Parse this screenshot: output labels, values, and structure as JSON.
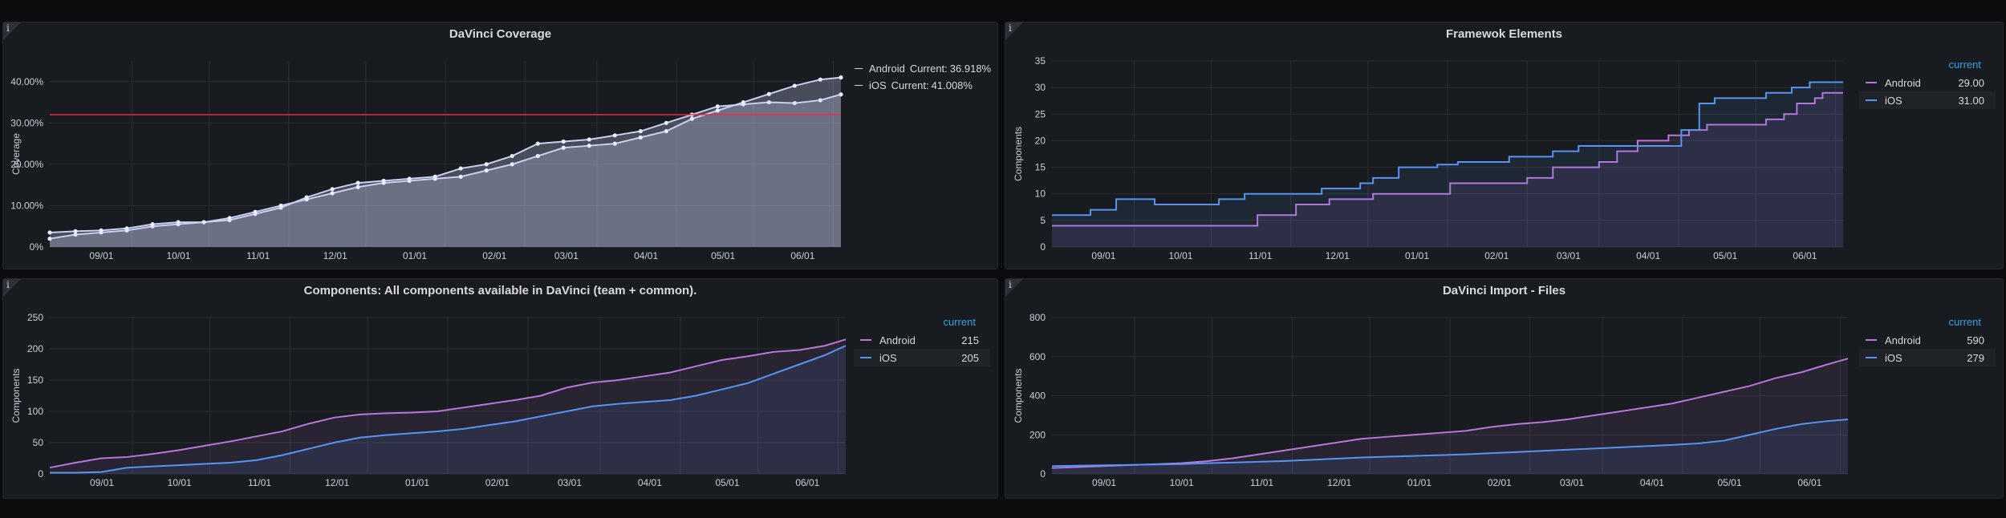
{
  "panels": {
    "p1": {
      "title": "DaVinci Coverage",
      "legend": [
        {
          "name": "Android",
          "prefix": "Current:",
          "value": "36.918%"
        },
        {
          "name": "iOS",
          "prefix": "Current:",
          "value": "41.008%"
        }
      ]
    },
    "p2": {
      "title": "Framewok Elements",
      "legend_header": "current",
      "legend": [
        {
          "name": "Android",
          "value": "29.00"
        },
        {
          "name": "iOS",
          "value": "31.00"
        }
      ]
    },
    "p3": {
      "title": "Components: All components available in DaVinci (team + common).",
      "legend_header": "current",
      "legend": [
        {
          "name": "Android",
          "value": "215"
        },
        {
          "name": "iOS",
          "value": "205"
        }
      ]
    },
    "p4": {
      "title": "DaVinci Import - Files",
      "legend_header": "current",
      "legend": [
        {
          "name": "Android",
          "value": "590"
        },
        {
          "name": "iOS",
          "value": "279"
        }
      ]
    }
  },
  "colors": {
    "android": "#b877d9",
    "ios": "#5794f2",
    "coverage": "#c7d0f0",
    "threshold": "#e02f44"
  },
  "chart_data": [
    {
      "id": "p1",
      "type": "line",
      "title": "DaVinci Coverage",
      "xlabel": "",
      "ylabel": "Coverage",
      "x_ticks": [
        "09/01",
        "10/01",
        "11/01",
        "12/01",
        "01/01",
        "02/01",
        "03/01",
        "04/01",
        "05/01",
        "06/01"
      ],
      "y_ticks": [
        "0%",
        "10.00%",
        "20.00%",
        "30.00%",
        "40.00%"
      ],
      "ylim": [
        0,
        45
      ],
      "xlim": [
        0,
        308
      ],
      "x_tick_values": [
        32,
        62,
        93,
        123,
        154,
        185,
        213,
        244,
        274,
        305
      ],
      "threshold": 32,
      "series": [
        {
          "name": "Android",
          "x": [
            0,
            10,
            20,
            30,
            40,
            50,
            60,
            70,
            80,
            90,
            100,
            110,
            120,
            130,
            140,
            150,
            160,
            170,
            180,
            190,
            200,
            210,
            220,
            230,
            240,
            250,
            260,
            270,
            280,
            290,
            300,
            308
          ],
          "y": [
            2,
            3,
            3.5,
            4,
            5,
            5.5,
            6,
            6.5,
            8,
            9.5,
            12,
            14,
            15.5,
            16,
            16.5,
            17,
            19,
            20,
            22,
            25,
            25.5,
            26,
            27,
            28,
            30,
            32,
            34,
            34.5,
            35,
            34.8,
            35.5,
            36.9
          ]
        },
        {
          "name": "iOS",
          "x": [
            0,
            10,
            20,
            30,
            40,
            50,
            60,
            70,
            80,
            90,
            100,
            110,
            120,
            130,
            140,
            150,
            160,
            170,
            180,
            190,
            200,
            210,
            220,
            230,
            240,
            250,
            260,
            270,
            280,
            290,
            300,
            308
          ],
          "y": [
            3.5,
            3.8,
            4,
            4.5,
            5.5,
            6,
            6,
            7,
            8.5,
            10,
            11.5,
            13,
            14.5,
            15.5,
            16,
            16.5,
            17,
            18.5,
            20,
            22,
            24,
            24.5,
            25,
            26.5,
            28,
            31,
            33,
            35,
            37,
            39,
            40.5,
            41
          ]
        }
      ]
    },
    {
      "id": "p2",
      "type": "line",
      "title": "Framewok Elements",
      "xlabel": "",
      "ylabel": "Components",
      "x_ticks": [
        "09/01",
        "10/01",
        "11/01",
        "12/01",
        "01/01",
        "02/01",
        "03/01",
        "04/01",
        "05/01",
        "06/01"
      ],
      "y_ticks": [
        "0",
        "5",
        "10",
        "15",
        "20",
        "25",
        "30",
        "35"
      ],
      "ylim": [
        0,
        35
      ],
      "xlim": [
        0,
        308
      ],
      "x_tick_values": [
        32,
        62,
        93,
        123,
        154,
        185,
        213,
        244,
        274,
        305
      ],
      "series": [
        {
          "name": "Android",
          "x": [
            0,
            60,
            70,
            80,
            95,
            108,
            120,
            125,
            145,
            155,
            160,
            168,
            185,
            195,
            205,
            213,
            220,
            228,
            240,
            248,
            255,
            270,
            278,
            285,
            290,
            297,
            300,
            308
          ],
          "y": [
            4,
            4,
            4,
            6,
            8,
            9,
            9,
            10,
            10,
            12,
            12,
            12,
            13,
            15,
            15,
            16,
            18,
            20,
            21,
            22,
            23,
            23,
            24,
            25,
            27,
            28,
            29,
            29
          ]
        },
        {
          "name": "iOS",
          "x": [
            0,
            15,
            25,
            40,
            55,
            65,
            75,
            85,
            95,
            105,
            110,
            120,
            125,
            135,
            150,
            158,
            168,
            178,
            185,
            195,
            205,
            212,
            220,
            228,
            240,
            245,
            252,
            258,
            272,
            278,
            288,
            295,
            300,
            308
          ],
          "y": [
            6,
            7,
            9,
            8,
            8,
            9,
            10,
            10,
            10,
            11,
            11,
            12,
            13,
            15,
            15.5,
            16,
            16,
            17,
            17,
            18,
            19,
            19,
            19,
            19,
            19,
            22,
            27,
            28,
            28,
            29,
            30,
            31,
            31,
            31
          ]
        }
      ]
    },
    {
      "id": "p3",
      "type": "line",
      "title": "Components: All components available in DaVinci (team + common).",
      "xlabel": "",
      "ylabel": "Components",
      "x_ticks": [
        "09/01",
        "10/01",
        "11/01",
        "12/01",
        "01/01",
        "02/01",
        "03/01",
        "04/01",
        "05/01",
        "06/01"
      ],
      "y_ticks": [
        "0",
        "50",
        "100",
        "150",
        "200",
        "250"
      ],
      "ylim": [
        0,
        250
      ],
      "xlim": [
        0,
        308
      ],
      "x_tick_values": [
        32,
        62,
        93,
        123,
        154,
        185,
        213,
        244,
        274,
        305
      ],
      "series": [
        {
          "name": "Android",
          "x": [
            0,
            10,
            20,
            30,
            40,
            50,
            60,
            70,
            80,
            90,
            100,
            110,
            120,
            130,
            140,
            150,
            160,
            170,
            180,
            190,
            200,
            210,
            220,
            230,
            240,
            250,
            260,
            270,
            280,
            290,
            300,
            308
          ],
          "y": [
            10,
            18,
            25,
            27,
            32,
            38,
            45,
            52,
            60,
            68,
            80,
            90,
            95,
            97,
            98,
            100,
            106,
            112,
            118,
            125,
            138,
            146,
            150,
            156,
            162,
            172,
            182,
            188,
            195,
            198,
            205,
            215
          ]
        },
        {
          "name": "iOS",
          "x": [
            0,
            10,
            20,
            30,
            40,
            50,
            60,
            70,
            80,
            90,
            100,
            110,
            120,
            130,
            140,
            150,
            160,
            170,
            180,
            190,
            200,
            210,
            220,
            230,
            240,
            250,
            260,
            270,
            280,
            290,
            300,
            308
          ],
          "y": [
            2,
            2,
            3,
            10,
            12,
            14,
            16,
            18,
            22,
            30,
            40,
            50,
            58,
            62,
            65,
            68,
            72,
            78,
            84,
            92,
            100,
            108,
            112,
            115,
            118,
            125,
            135,
            145,
            160,
            175,
            190,
            205
          ]
        }
      ]
    },
    {
      "id": "p4",
      "type": "line",
      "title": "DaVinci Import - Files",
      "xlabel": "",
      "ylabel": "Components",
      "x_ticks": [
        "09/01",
        "10/01",
        "11/01",
        "12/01",
        "01/01",
        "02/01",
        "03/01",
        "04/01",
        "05/01",
        "06/01"
      ],
      "y_ticks": [
        "0",
        "200",
        "400",
        "600",
        "800"
      ],
      "ylim": [
        0,
        800
      ],
      "xlim": [
        0,
        308
      ],
      "x_tick_values": [
        32,
        62,
        93,
        123,
        154,
        185,
        213,
        244,
        274,
        305
      ],
      "series": [
        {
          "name": "Android",
          "x": [
            0,
            10,
            20,
            30,
            40,
            50,
            60,
            70,
            80,
            90,
            100,
            110,
            120,
            130,
            140,
            150,
            160,
            170,
            180,
            190,
            200,
            210,
            220,
            230,
            240,
            250,
            260,
            270,
            280,
            290,
            300,
            308
          ],
          "y": [
            30,
            35,
            40,
            45,
            50,
            55,
            65,
            80,
            100,
            120,
            140,
            160,
            180,
            190,
            200,
            210,
            220,
            240,
            255,
            265,
            280,
            300,
            320,
            340,
            360,
            390,
            420,
            450,
            490,
            520,
            560,
            590
          ]
        },
        {
          "name": "iOS",
          "x": [
            0,
            10,
            20,
            30,
            40,
            50,
            60,
            70,
            80,
            90,
            100,
            110,
            120,
            130,
            140,
            150,
            160,
            170,
            180,
            190,
            200,
            210,
            220,
            230,
            240,
            250,
            260,
            270,
            280,
            290,
            300,
            308
          ],
          "y": [
            40,
            42,
            44,
            46,
            48,
            50,
            55,
            58,
            62,
            66,
            72,
            78,
            84,
            88,
            92,
            96,
            100,
            106,
            112,
            118,
            124,
            130,
            136,
            142,
            148,
            156,
            170,
            200,
            230,
            255,
            270,
            279
          ]
        }
      ]
    }
  ]
}
